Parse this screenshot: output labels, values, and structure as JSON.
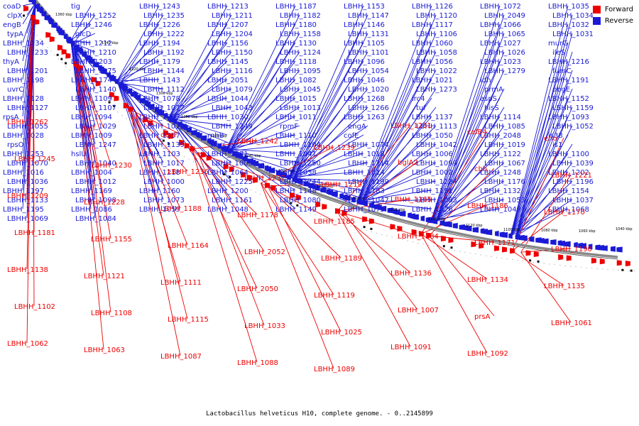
{
  "caption": "Lactobacillus helveticus H10, complete genome. - 0..2145899",
  "legend": {
    "forward_label": "Forward",
    "reverse_label": "Reverse",
    "forward_color": "#ee0000",
    "reverse_color": "#1a1ad6"
  },
  "ticks": [
    "1360 kbp",
    "1340 kbp",
    "1320 kbp",
    "1300 kbp",
    "1280 kbp",
    "1260 kbp",
    "1240 kbp",
    "1220 kbp",
    "1200 kbp",
    "1180 kbp",
    "1160 kbp",
    "1140 kbp",
    "1120 kbp",
    "1100 kbp",
    "1080 kbp",
    "1060 kbp",
    "1040 kbp"
  ],
  "reverse_labels": [
    "coaD",
    "tig",
    "LBHH_1243",
    "LBHH_1213",
    "LBHH_1187",
    "LBHH_1153",
    "LBHH_1126",
    "LBHH_1072",
    "LBHH_1035",
    "clpX",
    "LBHH_1252",
    "LBHH_1235",
    "LBHH_1211",
    "LBHH_1182",
    "LBHH_1147",
    "LBHH_1120",
    "LBHH_2049",
    "LBHH_1034",
    "engB",
    "LBHH_1246",
    "LBHH_1226",
    "LBHH_1207",
    "LBHH_1180",
    "LBHH_1146",
    "LBHH_1117",
    "LBHH_1066",
    "LBHH_1032",
    "typA",
    "glcD",
    "LBHH_1222",
    "LBHH_1204",
    "LBHH_1158",
    "LBHH_1131",
    "LBHH_1106",
    "LBHH_1065",
    "LBHH_1031",
    "LBHH_1234",
    "LBHH_1212",
    "LBHH_1194",
    "LBHH_1156",
    "LBHH_1130",
    "LBHH_1105",
    "LBHH_1060",
    "LBHH_1027",
    "murG",
    "LBHH_1233",
    "LBHH_1210",
    "LBHH_1192",
    "LBHH_1150",
    "LBHH_1124",
    "LBHH_1101",
    "LBHH_1058",
    "LBHH_1026",
    "ileS",
    "thyA",
    "LBHH_1203",
    "LBHH_1179",
    "LBHH_1145",
    "LBHH_1118",
    "LBHH_1096",
    "LBHH_1056",
    "LBHH_1023",
    "LBHH_1216",
    "LBHH_1201",
    "LBHH_1175",
    "LBHH_1144",
    "LBHH_1116",
    "LBHH_1095",
    "LBHH_1054",
    "LBHH_1022",
    "LBHH_1279",
    "fumC",
    "LBHH_1198",
    "LBHH_1174",
    "LBHH_1143",
    "LBHH_2051",
    "LBHH_1082",
    "LBHH_1046",
    "LBHH_1021",
    "ldh",
    "LBHH_1191",
    "uvrC",
    "LBHH_1140",
    "LBHH_1112",
    "LBHH_1079",
    "LBHH_1045",
    "LBHH_1020",
    "LBHH_1273",
    "prmA",
    "obgE",
    "LBHH_1128",
    "LBHH_1109",
    "LBHH_1078",
    "LBHH_1044",
    "LBHH_1015",
    "LBHH_1268",
    "irc4",
    "aspS",
    "LBHH_1152",
    "LBHH_1127",
    "LBHH_1107",
    "LBHH_1077",
    "LBHH_1043",
    "LBHH_1013",
    "LBHH_1266",
    "tuf",
    "hisS",
    "LBHH_1159",
    "rpsA",
    "LBHH_1094",
    "LBHH_1057",
    "LBHH_1030",
    "LBHH_1011",
    "LBHH_1263",
    "LBHH_1137",
    "LBHH_1114",
    "LBHH_1093",
    "LBHH_1055",
    "LBHH_1029",
    "LBHH_1010",
    "LBHH_1249",
    "rpmF",
    "engA",
    "LBHH_1113",
    "LBHH_1085",
    "LBHH_1052",
    "LBHH_1028",
    "LBHH_1009",
    "LBHH_1257",
    "rnhB",
    "LBHH_1110",
    "cofE",
    "LBHH_1050",
    "LBHH_2048",
    "is38",
    "rpsO",
    "LBHH_1247",
    "LBHH_1139",
    "xerC",
    "LBHH_1104",
    "LBHH_1074",
    "LBHH_1042",
    "LBHH_1019",
    "is1",
    "LBHH_1253",
    "hslU",
    "LBHH_1103",
    "LBHH_1071",
    "LBHH_1041",
    "LBHH_1018",
    "LBHH_1006",
    "LBHH_1122",
    "LBHH_1100",
    "LBHH_1070",
    "LBHH_1040",
    "LBHH_1017",
    "LBHH_1005",
    "LBHH_1250",
    "LBHH_1214",
    "LBHH_1099",
    "LBHH_1067",
    "LBHH_1039",
    "LBHH_1016",
    "LBHH_1004",
    "LBHH_1218",
    "LBHH_1064",
    "LBHH_1038",
    "LBHH_1014",
    "LBHH_1002",
    "LBHH_1248",
    "LBHH_1202",
    "LBHH_1036",
    "LBHH_1012",
    "LBHH_1000",
    "LBHH_1225",
    "LBHH_1244",
    "LBHH_1199",
    "LBHH_1224",
    "LBHH_1176",
    "LBHH_1196",
    "LBHH_1197",
    "LBHH_1169",
    "LBHH_1160",
    "LBHH_1200",
    "LBHH_1148",
    "LBHH_1183",
    "LBHH_1151",
    "LBHH_1132",
    "LBHH_1154",
    "LBHH_1133",
    "LBHH_1098",
    "LBHH_1073",
    "LBHH_1161",
    "LBHH_1080",
    "LBHH_1047",
    "LBHH_1083",
    "LBHH_1053",
    "LBHH_1037",
    "LBHH_1195",
    "LBHH_1086",
    "LBHH_1059",
    "LBHH_1048",
    "LBHH_1149",
    "LBHH_1075",
    "LBHH_1076",
    "LBHH_1049",
    "LBHH_1068",
    "LBHH_1069",
    "LBHH_1084"
  ],
  "forward_labels": [
    "LBHH_1262",
    "def",
    "dapF",
    "LBHH_1242",
    "LBHH_1239",
    "LBHH_1231",
    "celB4",
    "eno",
    "LBHH_1245",
    "LBHH_1230",
    "LBHH_1236",
    "LBHH_1237",
    "LBHH_1219",
    "bglA2",
    "cbh",
    "LBHH_1221",
    "LBHH_1209",
    "LBHH_1228",
    "LBHH_1188",
    "LBHH_1178",
    "LBHH_1185",
    "LBHH_1165",
    "LBHH_1186",
    "LBHH_1170",
    "LBHH_1181",
    "LBHH_1155",
    "LBHH_1164",
    "LBHH_2052",
    "LBHH_1189",
    "LBHH_1184",
    "LBHH_1171",
    "LBHH_1190",
    "LBHH_1138",
    "LBHH_1121",
    "LBHH_1111",
    "LBHH_2050",
    "LBHH_1119",
    "LBHH_1136",
    "LBHH_1134",
    "LBHH_1135",
    "LBHH_1102",
    "LBHH_1108",
    "LBHH_1115",
    "LBHH_1033",
    "LBHH_1025",
    "LBHH_1007",
    "prsA",
    "LBHH_1061",
    "LBHH_1062",
    "LBHH_1063",
    "LBHH_1087",
    "LBHH_1088",
    "LBHH_1089",
    "LBHH_1091",
    "LBHH_1092"
  ]
}
